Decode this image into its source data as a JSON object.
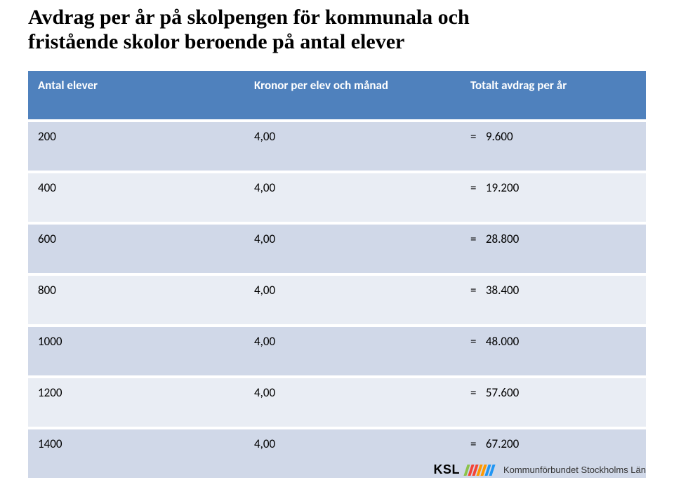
{
  "title_line1": "Avdrag per år på skolpengen för kommunala och",
  "title_line2": "fristående skolor beroende på antal elever",
  "table": {
    "headers": [
      "Antal elever",
      "Kronor per elev och månad",
      "Totalt avdrag per år"
    ],
    "rows": [
      {
        "col1": "200",
        "col2": "4,00",
        "eq": "=",
        "val": "9.600"
      },
      {
        "col1": "400",
        "col2": "4,00",
        "eq": "=",
        "val": "19.200"
      },
      {
        "col1": "600",
        "col2": "4,00",
        "eq": "=",
        "val": "28.800"
      },
      {
        "col1": "800",
        "col2": "4,00",
        "eq": "=",
        "val": "38.400"
      },
      {
        "col1": "1000",
        "col2": "4,00",
        "eq": "=",
        "val": "48.000"
      },
      {
        "col1": "1200",
        "col2": "4,00",
        "eq": "=",
        "val": "57.600"
      },
      {
        "col1": "1400",
        "col2": "4,00",
        "eq": "=",
        "val": "67.200"
      }
    ]
  },
  "footer": {
    "logo_text": "KSL",
    "bar_colors": [
      "#8bc34a",
      "#f44336",
      "#f44336",
      "#ff9800",
      "#ff9800",
      "#2196f3",
      "#2196f3"
    ],
    "subtitle": "Kommunförbundet Stockholms Län"
  },
  "colors": {
    "header_bg": "#4f81bd",
    "row_odd_bg": "#d0d8e8",
    "row_even_bg": "#e9edf4"
  }
}
